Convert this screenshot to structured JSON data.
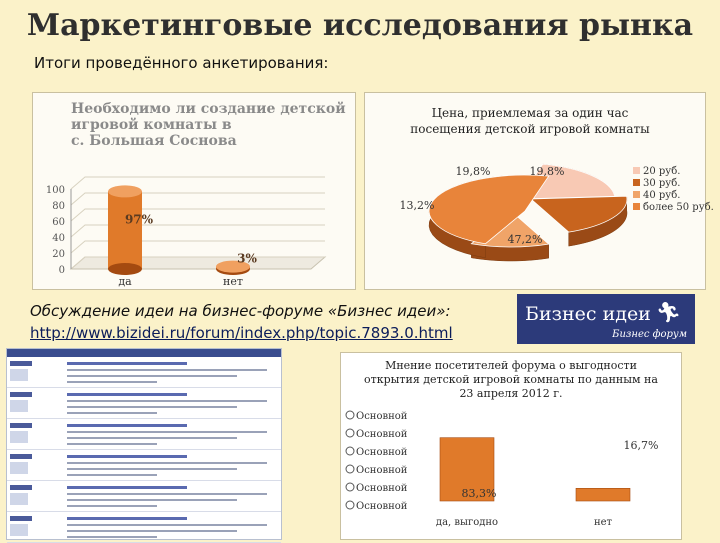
{
  "slide": {
    "title": "Маркетинговые исследования рынка",
    "subtitle": "Итоги проведённого анкетирования:",
    "forum_heading": "Обсуждение идеи на бизнес-форуме «Бизнес идеи»:",
    "forum_link": "http://www.bizidei.ru/forum/index.php/topic.7893.0.html",
    "logo_title": "Бизнес идеи",
    "logo_subtitle": "Бизнес форум"
  },
  "chart_data": [
    {
      "type": "bar",
      "title": "Необходимо ли создание детской игровой комнаты в с. Большая Соснова",
      "title_lines": [
        "Необходимо ли создание детской",
        "игровой комнаты в",
        "с. Большая Соснова"
      ],
      "categories": [
        "да",
        "нет"
      ],
      "values": [
        97,
        3
      ],
      "data_labels": [
        "97%",
        "3%"
      ],
      "yticks": [
        "0",
        "20",
        "40",
        "60",
        "80",
        "100"
      ],
      "ylim": [
        0,
        100
      ],
      "colors": {
        "bar": "#e07a2a",
        "bar_dark": "#a44a10",
        "title": "#8a8a8a"
      }
    },
    {
      "type": "pie",
      "title": "Цена, приемлемая за один час посещения детской игровой комнаты",
      "title_lines": [
        "Цена, приемлемая за один час",
        "посещения детской игровой комнаты"
      ],
      "slices": [
        {
          "label": "20 руб.",
          "value": 19.8,
          "value_label": "19,8%",
          "color": "#f8c9b4"
        },
        {
          "label": "30 руб.",
          "value": 19.8,
          "value_label": "19,8%",
          "color": "#c8641e"
        },
        {
          "label": "40 руб.",
          "value": 13.2,
          "value_label": "13,2%",
          "color": "#f0a468"
        },
        {
          "label": "более 50 руб.",
          "value": 47.2,
          "value_label": "47,2%",
          "color": "#e8843a"
        }
      ],
      "legend_position": "right"
    },
    {
      "type": "bar",
      "title": "Мнение посетителей форума о выгодности открытия детской игровой комнаты по данным на 23 апреля 2012 г.",
      "title_lines": [
        "Мнение посетителей форума о выгодности",
        "открытия детской игровой комнаты по данным на",
        "23 апреля 2012 г."
      ],
      "categories": [
        "да, выгодно",
        "нет"
      ],
      "values": [
        83.3,
        16.7
      ],
      "data_labels": [
        "83,3%",
        "16,7%"
      ],
      "legend_entries": [
        "Основной",
        "Основной",
        "Основной",
        "Основной",
        "Основной",
        "Основной"
      ],
      "ylim": [
        0,
        100
      ],
      "colors": {
        "bar": "#e07a2a"
      }
    }
  ]
}
